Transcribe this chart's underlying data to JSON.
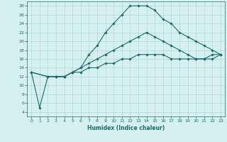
{
  "title": "",
  "xlabel": "Humidex (Indice chaleur)",
  "bg_color": "#d6f0f0",
  "grid_color": "#b0d8d8",
  "line_color": "#1a6b6b",
  "xlim": [
    -0.5,
    23.5
  ],
  "ylim": [
    3,
    29
  ],
  "yticks": [
    4,
    6,
    8,
    10,
    12,
    14,
    16,
    18,
    20,
    22,
    24,
    26,
    28
  ],
  "xticks": [
    0,
    1,
    2,
    3,
    4,
    5,
    6,
    7,
    8,
    9,
    10,
    11,
    12,
    13,
    14,
    15,
    16,
    17,
    18,
    19,
    20,
    21,
    22,
    23
  ],
  "line1_x": [
    0,
    1,
    2,
    3,
    4,
    5,
    6,
    7,
    8,
    9,
    10,
    11,
    12,
    13,
    14,
    15,
    16,
    17,
    18,
    19,
    20,
    21,
    22,
    23
  ],
  "line1_y": [
    13,
    5,
    12,
    12,
    12,
    13,
    14,
    17,
    19,
    22,
    24,
    26,
    28,
    28,
    28,
    27,
    25,
    24,
    22,
    21,
    20,
    19,
    18,
    17
  ],
  "line2_x": [
    0,
    2,
    3,
    4,
    5,
    6,
    7,
    8,
    9,
    10,
    11,
    12,
    13,
    14,
    15,
    16,
    17,
    18,
    19,
    20,
    21,
    22,
    23
  ],
  "line2_y": [
    13,
    12,
    12,
    12,
    13,
    14,
    15,
    16,
    17,
    18,
    19,
    20,
    21,
    22,
    21,
    20,
    19,
    18,
    17,
    16,
    16,
    16,
    17
  ],
  "line3_x": [
    0,
    2,
    3,
    4,
    5,
    6,
    7,
    8,
    9,
    10,
    11,
    12,
    13,
    14,
    15,
    16,
    17,
    18,
    19,
    20,
    21,
    22,
    23
  ],
  "line3_y": [
    13,
    12,
    12,
    12,
    13,
    13,
    14,
    14,
    15,
    15,
    16,
    16,
    17,
    17,
    17,
    17,
    16,
    16,
    16,
    16,
    16,
    17,
    17
  ]
}
